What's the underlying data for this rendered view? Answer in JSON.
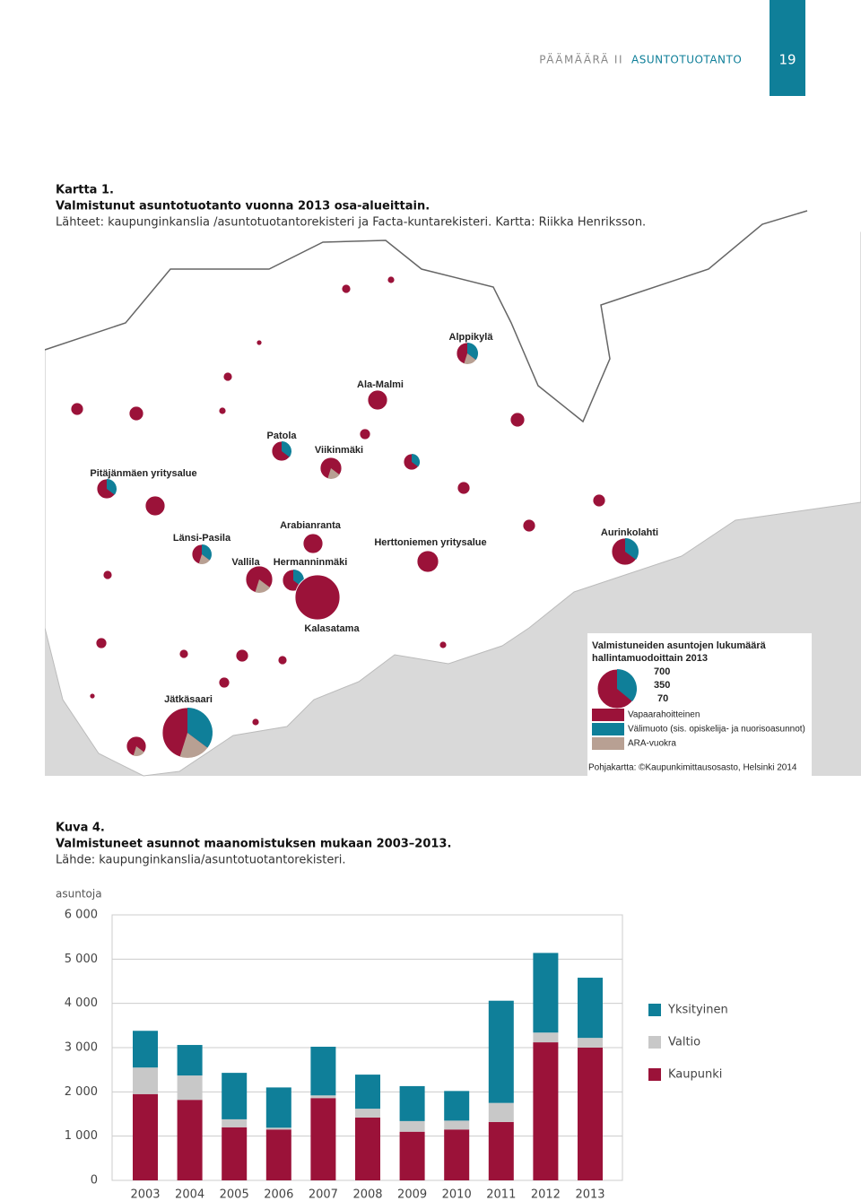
{
  "header": {
    "section": "PÄÄMÄÄRÄ II",
    "topic": "ASUNTOTUOTANTO",
    "page_number": "19"
  },
  "map": {
    "caption_label": "Kartta 1.",
    "caption_title": "Valmistunut asuntotuotanto vuonna 2013 osa-alueittain.",
    "caption_source": "Lähteet: kaupunginkanslia /asuntotuotantorekisteri ja Facta-kuntarekisteri. Kartta: Riikka Henriksson.",
    "place_labels": [
      "Alppikylä",
      "Ala-Malmi",
      "Patola",
      "Viikinmäki",
      "Pitäjänmäen yritysalue",
      "Arabianranta",
      "Länsi-Pasila",
      "Herttoniemen yritysalue",
      "Aurinkolahti",
      "Vallila",
      "Hermanninmäki",
      "Kalasatama",
      "Jätkäsaari"
    ],
    "legend": {
      "title_lines": [
        "Valmistuneiden asuntojen lukumäärä",
        "hallintamuodoittain 2013"
      ],
      "sizes": [
        700,
        350,
        70
      ],
      "categories": [
        {
          "name": "Vapaarahoitteinen",
          "color": "#9b1239"
        },
        {
          "name": "Välimuoto (sis. opiskelija- ja nuorisoasunnot)",
          "color": "#0f7f99"
        },
        {
          "name": "ARA-vuokra",
          "color": "#b8a093"
        }
      ],
      "credit": "Pohjakartta: ©Kaupunkimittausosasto, Helsinki 2014"
    }
  },
  "chart_data": {
    "type": "stacked_bar",
    "label": "Kuva 4.",
    "title": "Valmistuneet asunnot maanomistuksen mukaan 2003–2013.",
    "source": "Lähde: kaupunginkanslia/asuntotuotantorekisteri.",
    "y_label": "asuntoja",
    "categories": [
      "2003",
      "2004",
      "2005",
      "2006",
      "2007",
      "2008",
      "2009",
      "2010",
      "2011",
      "2012",
      "2013"
    ],
    "series": [
      {
        "name": "Kaupunki",
        "color": "#9b1239",
        "values": [
          1950,
          1820,
          1200,
          1150,
          1860,
          1420,
          1100,
          1150,
          1320,
          3120,
          3000
        ]
      },
      {
        "name": "Valtio",
        "color": "#c8c8c8",
        "values": [
          600,
          550,
          180,
          40,
          60,
          200,
          240,
          200,
          430,
          220,
          220
        ]
      },
      {
        "name": "Yksityinen",
        "color": "#0f7f99",
        "values": [
          830,
          690,
          1050,
          910,
          1100,
          770,
          790,
          670,
          2310,
          1800,
          1360
        ]
      }
    ],
    "ylim": [
      0,
      6000
    ],
    "yticks": [
      0,
      {
        "value": 1000,
        "label": "1 000"
      },
      {
        "value": 2000,
        "label": "2 000"
      },
      {
        "value": 3000,
        "label": "3 000"
      },
      {
        "value": 4000,
        "label": "4 000"
      },
      {
        "value": 5000,
        "label": "5 000"
      },
      {
        "value": 6000,
        "label": "6 000"
      }
    ],
    "grid": true
  }
}
